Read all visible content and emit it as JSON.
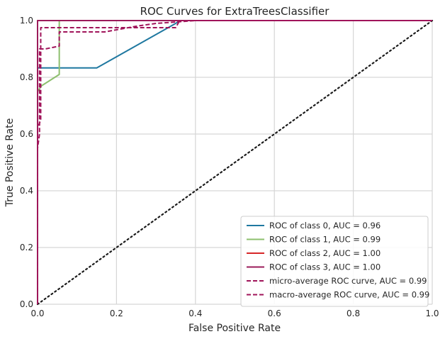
{
  "chart_data": {
    "type": "line",
    "title": "ROC Curves for ExtraTreesClassifier",
    "xlabel": "False Positive Rate",
    "ylabel": "True Positive Rate",
    "xlim": [
      0,
      1
    ],
    "ylim": [
      0,
      1
    ],
    "xticks": [
      "0.0",
      "0.2",
      "0.4",
      "0.6",
      "0.8",
      "1.0"
    ],
    "yticks": [
      "0.0",
      "0.2",
      "0.4",
      "0.6",
      "0.8",
      "1.0"
    ],
    "grid": true,
    "legend_position": "lower-right",
    "series": [
      {
        "name": "ROC of class 0, AUC = 0.96",
        "color": "#1f78a0",
        "style": "solid",
        "points": [
          [
            0,
            0
          ],
          [
            0,
            0.833
          ],
          [
            0.15,
            0.833
          ],
          [
            0.35,
            0.99
          ],
          [
            0.36,
            1.0
          ],
          [
            1.0,
            1.0
          ]
        ]
      },
      {
        "name": "ROC of class 1, AUC = 0.99",
        "color": "#8dbf6e",
        "style": "solid",
        "points": [
          [
            0,
            0
          ],
          [
            0,
            0.75
          ],
          [
            0.01,
            0.77
          ],
          [
            0.055,
            0.81
          ],
          [
            0.055,
            0.98
          ],
          [
            0.055,
            1.0
          ],
          [
            1.0,
            1.0
          ]
        ]
      },
      {
        "name": "ROC of class 2, AUC = 1.00",
        "color": "#d62728",
        "style": "solid",
        "points": [
          [
            0,
            0
          ],
          [
            0,
            1.0
          ],
          [
            1.0,
            1.0
          ]
        ]
      },
      {
        "name": "ROC of class 3, AUC = 1.00",
        "color": "#9b1b5a",
        "style": "solid",
        "points": [
          [
            0,
            0
          ],
          [
            0,
            1.0
          ],
          [
            1.0,
            1.0
          ]
        ]
      },
      {
        "name": "micro-average ROC curve, AUC = 0.99",
        "color": "#a0145a",
        "style": "dashed",
        "points": [
          [
            0,
            0
          ],
          [
            0,
            0.55
          ],
          [
            0.005,
            0.6
          ],
          [
            0.005,
            0.9
          ],
          [
            0.02,
            0.9
          ],
          [
            0.055,
            0.91
          ],
          [
            0.055,
            0.96
          ],
          [
            0.17,
            0.96
          ],
          [
            0.25,
            0.98
          ],
          [
            0.3,
            0.99
          ],
          [
            0.4,
            1.0
          ],
          [
            1.0,
            1.0
          ]
        ]
      },
      {
        "name": "macro-average ROC curve, AUC = 0.99",
        "color": "#a0145a",
        "style": "dashed",
        "points": [
          [
            0,
            0
          ],
          [
            0,
            0.62
          ],
          [
            0.008,
            0.65
          ],
          [
            0.008,
            0.975
          ],
          [
            0.05,
            0.975
          ],
          [
            0.35,
            0.975
          ],
          [
            0.36,
            1.0
          ],
          [
            1.0,
            1.0
          ]
        ]
      }
    ],
    "reference_line": {
      "color": "#1a1a1a",
      "style": "dotted",
      "points": [
        [
          0,
          0
        ],
        [
          1,
          1
        ]
      ]
    }
  }
}
